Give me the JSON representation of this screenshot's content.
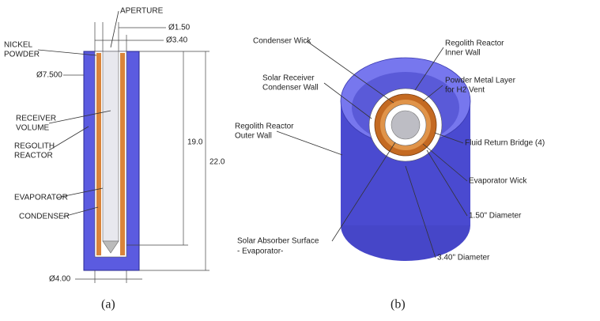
{
  "panel_a": {
    "caption": "(a)",
    "labels": [
      {
        "lines": [
          "APERTURE"
        ]
      },
      {
        "lines": [
          "NICKEL",
          "POWDER"
        ]
      },
      {
        "lines": [
          "Ø1.50"
        ]
      },
      {
        "lines": [
          "Ø3.40"
        ]
      },
      {
        "lines": [
          "Ø7.500"
        ]
      },
      {
        "lines": [
          "RECEIVER",
          "VOLUME"
        ]
      },
      {
        "lines": [
          "REGOLITH",
          "REACTOR"
        ]
      },
      {
        "lines": [
          "19.0"
        ]
      },
      {
        "lines": [
          "22.0"
        ]
      },
      {
        "lines": [
          "EVAPORATOR"
        ]
      },
      {
        "lines": [
          "CONDENSER"
        ]
      },
      {
        "lines": [
          "Ø4.00"
        ]
      }
    ]
  },
  "panel_b": {
    "caption": "(b)",
    "labels": [
      {
        "lines": [
          "Condenser Wick"
        ]
      },
      {
        "lines": [
          "Regolith Reactor",
          "Inner Wall"
        ]
      },
      {
        "lines": [
          "Solar Receiver",
          "Condenser Wall"
        ]
      },
      {
        "lines": [
          "Powder Metal Layer",
          "for H2 Vent"
        ]
      },
      {
        "lines": [
          "Regolith Reactor",
          "Outer Wall"
        ]
      },
      {
        "lines": [
          "Fluid Return Bridge (4)"
        ]
      },
      {
        "lines": [
          "Evaporator Wick"
        ]
      },
      {
        "lines": [
          "1.50\" Diameter"
        ]
      },
      {
        "lines": [
          "Solar Absorber Surface",
          "- Evaporator-"
        ]
      },
      {
        "lines": [
          "3.40\" Diameter"
        ]
      }
    ]
  }
}
